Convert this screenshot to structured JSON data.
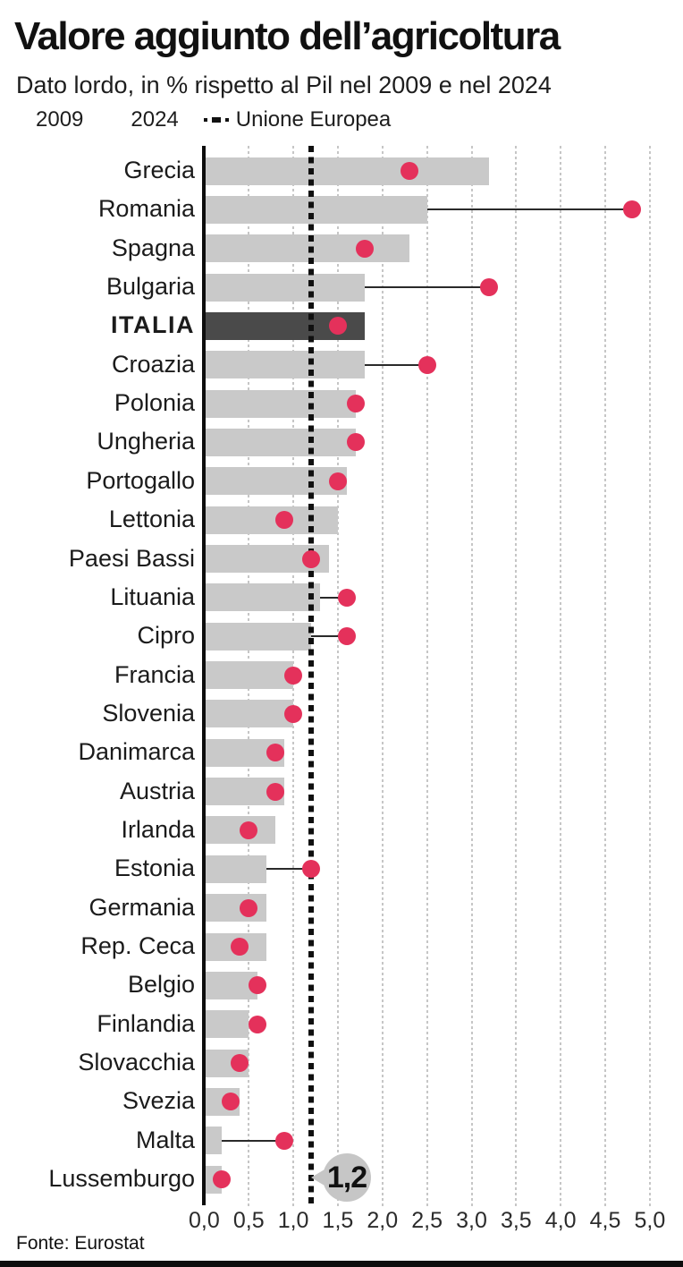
{
  "header": {
    "title": "Valore aggiunto dell’agricoltura",
    "subtitle": "Dato lordo, in % rispetto al Pil nel 2009 e nel 2024"
  },
  "legend": [
    {
      "label": "2009",
      "type": "dot",
      "color": "#e4315b"
    },
    {
      "label": "2024",
      "type": "square",
      "color": "#c9c9c9"
    },
    {
      "label": "Unione Europea",
      "type": "dashed-line",
      "color": "#111111"
    }
  ],
  "chart_data": {
    "type": "bar",
    "orientation": "horizontal",
    "title": "Valore aggiunto dell’agricoltura",
    "subtitle": "Dato lordo, in % rispetto al Pil nel 2009 e nel 2024",
    "xlabel": "",
    "ylabel": "",
    "xlim": [
      0,
      5
    ],
    "grid": true,
    "x_ticks": [
      "0,0",
      "0,5",
      "1,0",
      "1,5",
      "2,0",
      "2,5",
      "3,0",
      "3,5",
      "4,0",
      "4,5",
      "5,0"
    ],
    "categories": [
      "Grecia",
      "Romania",
      "Spagna",
      "Bulgaria",
      "ITALIA",
      "Croazia",
      "Polonia",
      "Ungheria",
      "Portogallo",
      "Lettonia",
      "Paesi Bassi",
      "Lituania",
      "Cipro",
      "Francia",
      "Slovenia",
      "Danimarca",
      "Austria",
      "Irlanda",
      "Estonia",
      "Germania",
      "Rep. Ceca",
      "Belgio",
      "Finlandia",
      "Slovacchia",
      "Svezia",
      "Malta",
      "Lussemburgo"
    ],
    "series": [
      {
        "name": "2009",
        "style": "dot",
        "color": "#e4315b",
        "values": [
          2.3,
          4.8,
          1.8,
          3.2,
          1.5,
          2.5,
          1.7,
          1.7,
          1.5,
          0.9,
          1.2,
          1.6,
          1.6,
          1.0,
          1.0,
          0.8,
          0.8,
          0.5,
          1.2,
          0.5,
          0.4,
          0.6,
          0.6,
          0.4,
          0.3,
          0.9,
          0.2
        ]
      },
      {
        "name": "2024",
        "style": "bar",
        "color": "#c9c9c9",
        "values": [
          3.2,
          2.5,
          2.3,
          1.8,
          1.8,
          1.8,
          1.7,
          1.7,
          1.6,
          1.5,
          1.4,
          1.3,
          1.2,
          1.0,
          1.0,
          0.9,
          0.9,
          0.8,
          0.7,
          0.7,
          0.7,
          0.6,
          0.5,
          0.5,
          0.4,
          0.2,
          0.2
        ]
      }
    ],
    "highlight_category": "ITALIA",
    "highlight_bar_color": "#4a4a4a",
    "reference_line": {
      "label": "Unione Europea",
      "value": 1.2,
      "value_label": "1,2"
    },
    "legend_position": "top"
  },
  "footer": {
    "source": "Fonte: Eurostat"
  }
}
